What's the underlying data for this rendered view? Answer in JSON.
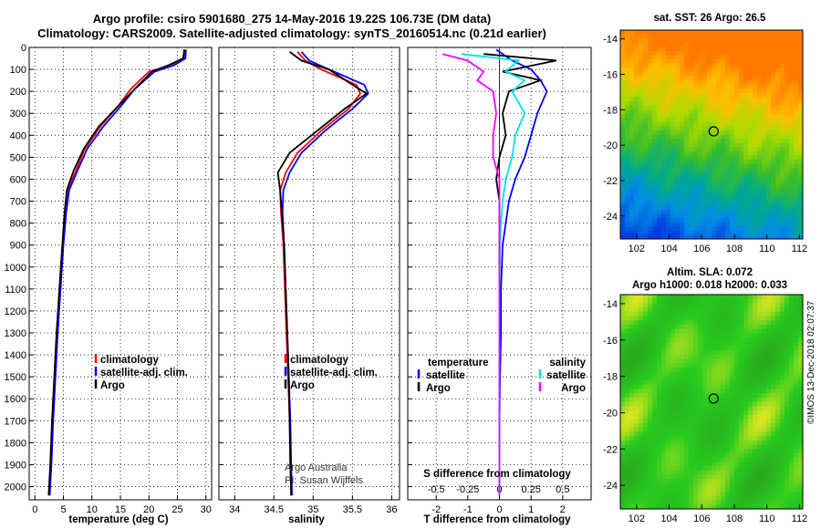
{
  "figure": {
    "title_line1": "Argo profile: csiro 5901680_275 14-May-2016 19.22S 106.73E (DM data)",
    "title_line2": "Climatology: CARS2009. Satellite-adjusted climatology: synTS_20160514.nc (0.21d earlier)",
    "credit_line1": "Argo Australia",
    "credit_line2": "PI: Susan Wijffels",
    "timestamp": "©IMOS 13-Dec-2018 02:07:37",
    "colors": {
      "climatology": "#ff0000",
      "satellite": "#0000ff",
      "argo": "#000000",
      "argo_diff": "#000000",
      "sat_s": "#00e5e5",
      "argo_s": "#ff00ff",
      "argo_s_diff": "#ff00ff"
    }
  },
  "chart_data": [
    {
      "type": "line",
      "id": "temperature",
      "xlabel": "temperature (deg C)",
      "ylabel": "",
      "xlim": [
        -1,
        31
      ],
      "ylim": [
        2060,
        0
      ],
      "xticks": [
        0,
        5,
        10,
        15,
        20,
        25,
        30
      ],
      "yticks": [
        0,
        100,
        200,
        300,
        400,
        500,
        600,
        700,
        800,
        900,
        1000,
        1100,
        1200,
        1300,
        1400,
        1500,
        1600,
        1700,
        1800,
        1900,
        2000
      ],
      "grid": "dotted",
      "legend": [
        "climatology",
        "satellite-adj. clim.",
        "Argo"
      ],
      "series": [
        {
          "name": "climatology",
          "x": [
            26.3,
            26.2,
            24,
            20,
            16.8,
            14.5,
            11.5,
            8.8,
            7.2,
            5.8,
            5.4,
            4.9,
            4.4,
            3.9,
            3.5,
            3.1,
            2.8,
            2.5
          ],
          "y": [
            10,
            50,
            80,
            110,
            190,
            270,
            360,
            460,
            560,
            650,
            750,
            900,
            1100,
            1300,
            1500,
            1700,
            1900,
            2040
          ]
        },
        {
          "name": "satellite-adj. clim.",
          "x": [
            26.5,
            26.4,
            24.5,
            21,
            17.5,
            15,
            12,
            9.2,
            7.5,
            6,
            5.5,
            5,
            4.5,
            4,
            3.6,
            3.2,
            2.9,
            2.6
          ],
          "y": [
            10,
            50,
            80,
            110,
            190,
            270,
            360,
            460,
            560,
            650,
            750,
            900,
            1100,
            1300,
            1500,
            1700,
            1900,
            2040
          ]
        },
        {
          "name": "Argo",
          "x": [
            26.2,
            26,
            23.5,
            20.5,
            17.5,
            14.5,
            11.2,
            8.6,
            6.8,
            5.6,
            5.2,
            4.8,
            4.3,
            3.8,
            3.4,
            3,
            2.7,
            2.4
          ],
          "y": [
            10,
            50,
            80,
            110,
            190,
            270,
            360,
            460,
            560,
            650,
            750,
            900,
            1100,
            1300,
            1500,
            1700,
            1900,
            2040
          ]
        }
      ]
    },
    {
      "type": "line",
      "id": "salinity",
      "xlabel": "salinity",
      "ylabel": "",
      "xlim": [
        33.8,
        36.1
      ],
      "ylim": [
        2060,
        0
      ],
      "xticks": [
        34,
        34.5,
        35,
        35.5,
        36
      ],
      "grid": "dotted",
      "legend": [
        "climatology",
        "satellite-adj. clim.",
        "Argo"
      ],
      "series": [
        {
          "name": "climatology",
          "x": [
            34.8,
            34.9,
            35.1,
            35.55,
            35.6,
            35.45,
            35.1,
            34.8,
            34.65,
            34.58,
            34.59,
            34.62,
            34.64,
            34.66,
            34.68,
            34.7,
            34.71,
            34.72
          ],
          "y": [
            20,
            60,
            100,
            170,
            210,
            280,
            380,
            480,
            570,
            650,
            750,
            900,
            1100,
            1300,
            1500,
            1700,
            1900,
            2040
          ]
        },
        {
          "name": "satellite-adj. clim.",
          "x": [
            34.85,
            34.95,
            35.2,
            35.65,
            35.7,
            35.5,
            35.15,
            34.85,
            34.7,
            34.62,
            34.61,
            34.63,
            34.65,
            34.67,
            34.69,
            34.71,
            34.72,
            34.73
          ],
          "y": [
            20,
            60,
            100,
            170,
            210,
            280,
            380,
            480,
            570,
            650,
            750,
            900,
            1100,
            1300,
            1500,
            1700,
            1900,
            2040
          ]
        },
        {
          "name": "Argo",
          "x": [
            34.7,
            34.85,
            35.2,
            35.5,
            35.68,
            35.4,
            35.05,
            34.7,
            34.55,
            34.58,
            34.6,
            34.63,
            34.65,
            34.67,
            34.69,
            34.7,
            34.71,
            34.72
          ],
          "y": [
            20,
            60,
            100,
            170,
            210,
            280,
            380,
            480,
            570,
            650,
            750,
            900,
            1100,
            1300,
            1500,
            1700,
            1900,
            2040
          ]
        }
      ]
    },
    {
      "type": "line",
      "id": "differences",
      "xlabel": "T difference from climatology",
      "top_label": "S difference from climatology",
      "xlim": [
        -2.9,
        2.9
      ],
      "ylim": [
        2060,
        0
      ],
      "xticks": [
        -2,
        -1,
        0,
        1,
        2
      ],
      "sticks_labels": [
        "-0.5",
        "-0.25",
        "0",
        "0.25",
        "0.5"
      ],
      "grid": "dotted",
      "legend_left_title": "temperature",
      "legend_right_title": "salinity",
      "legend_left": [
        "satellite",
        "Argo"
      ],
      "legend_right": [
        "satellite",
        "Argo"
      ],
      "series": [
        {
          "name": "satellite",
          "variable": "temperature",
          "x": [
            -0.1,
            0.4,
            1,
            1.3,
            1.5,
            1.2,
            1,
            0.8,
            0.5,
            0.3,
            0.2,
            0.1,
            0.05,
            0.05,
            0.02,
            0,
            0,
            0
          ],
          "y": [
            10,
            60,
            100,
            150,
            200,
            300,
            400,
            500,
            600,
            700,
            800,
            900,
            1100,
            1300,
            1500,
            1700,
            1900,
            2040
          ]
        },
        {
          "name": "Argo",
          "variable": "temperature",
          "x": [
            -0.5,
            1.8,
            0.1,
            1.3,
            0.3,
            0.1,
            0.2,
            0,
            -0.1,
            0,
            0,
            0,
            0,
            0,
            0,
            0,
            0,
            0
          ],
          "y": [
            30,
            60,
            110,
            150,
            200,
            300,
            400,
            500,
            600,
            700,
            800,
            900,
            1100,
            1300,
            1500,
            1700,
            1900,
            2040
          ]
        },
        {
          "name": "satellite",
          "variable": "salinity",
          "x": [
            -1.2,
            0.6,
            0.2,
            0.8,
            0.4,
            0.8,
            0.5,
            0.4,
            0.2,
            0.1,
            0.05,
            0.02,
            0,
            0,
            0,
            0,
            0,
            0
          ],
          "y": [
            30,
            60,
            110,
            150,
            200,
            300,
            400,
            500,
            600,
            700,
            800,
            900,
            1100,
            1300,
            1500,
            1700,
            1900,
            2040
          ]
        },
        {
          "name": "Argo",
          "variable": "salinity",
          "x": [
            -1.8,
            -1,
            -0.5,
            -0.7,
            -0.2,
            -0.1,
            -0.2,
            -0.2,
            0,
            0,
            0,
            0,
            0,
            0,
            0,
            0,
            0,
            0
          ],
          "y": [
            30,
            60,
            110,
            150,
            200,
            300,
            400,
            500,
            600,
            700,
            800,
            900,
            1100,
            1300,
            1500,
            1700,
            1900,
            2040
          ]
        }
      ]
    },
    {
      "type": "heatmap",
      "id": "sst-map",
      "title": "sat. SST: 26 Argo: 26.5",
      "xticks": [
        102,
        104,
        106,
        108,
        110,
        112
      ],
      "yticks": [
        -14,
        -16,
        -18,
        -20,
        -22,
        -24
      ],
      "xlim": [
        101,
        112.2
      ],
      "ylim": [
        -25.3,
        -13.5
      ],
      "marker": {
        "lon": 106.73,
        "lat": -19.22
      },
      "colormap": "jet"
    },
    {
      "type": "heatmap",
      "id": "sla-map",
      "title_line1": "Altim. SLA: 0.072",
      "title_line2": "Argo h1000: 0.018 h2000: 0.033",
      "xticks": [
        102,
        104,
        106,
        108,
        110,
        112
      ],
      "yticks": [
        -14,
        -16,
        -18,
        -20,
        -22,
        -24
      ],
      "xlim": [
        101,
        112.2
      ],
      "ylim": [
        -25.3,
        -13.5
      ],
      "marker": {
        "lon": 106.73,
        "lat": -19.22
      },
      "colormap": "green-yellow"
    }
  ]
}
